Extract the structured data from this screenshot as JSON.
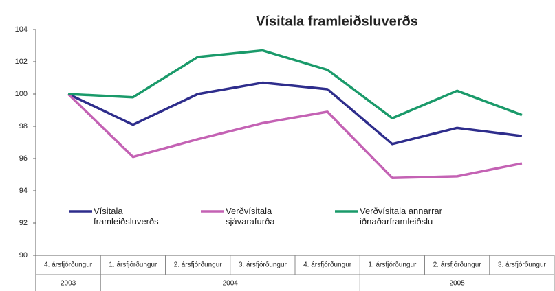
{
  "chart_data": {
    "type": "line",
    "title": "Vísitala framleiðsluverðs",
    "categories": [
      "4. ársfjórðungur",
      "1. ársfjórðungur",
      "2. ársfjórðungur",
      "3. ársfjórðungur",
      "4. ársfjórðungur",
      "1. ársfjórðungur",
      "2. ársfjórðungur",
      "3. ársfjórðungur"
    ],
    "category_groups": [
      {
        "label": "2003",
        "count": 1
      },
      {
        "label": "2004",
        "count": 4
      },
      {
        "label": "2005",
        "count": 3
      }
    ],
    "series": [
      {
        "name": "Vísitala framleiðsluverðs",
        "color": "#2e2d8c",
        "values": [
          100,
          98.1,
          100.0,
          100.7,
          100.3,
          96.9,
          97.9,
          97.4
        ]
      },
      {
        "name": "Verðvísitala sjávarafurða",
        "color": "#c462b4",
        "values": [
          100,
          96.1,
          97.2,
          98.2,
          98.9,
          94.8,
          94.9,
          95.7
        ]
      },
      {
        "name": "Verðvísitala annarrar iðnaðarframleiðslu",
        "color": "#1a9a6a",
        "values": [
          100,
          99.8,
          102.3,
          102.7,
          101.5,
          98.5,
          100.2,
          98.7
        ]
      }
    ],
    "ylim": [
      90,
      104
    ],
    "yticks": [
      90,
      92,
      94,
      96,
      98,
      100,
      102,
      104
    ],
    "grid": false
  }
}
